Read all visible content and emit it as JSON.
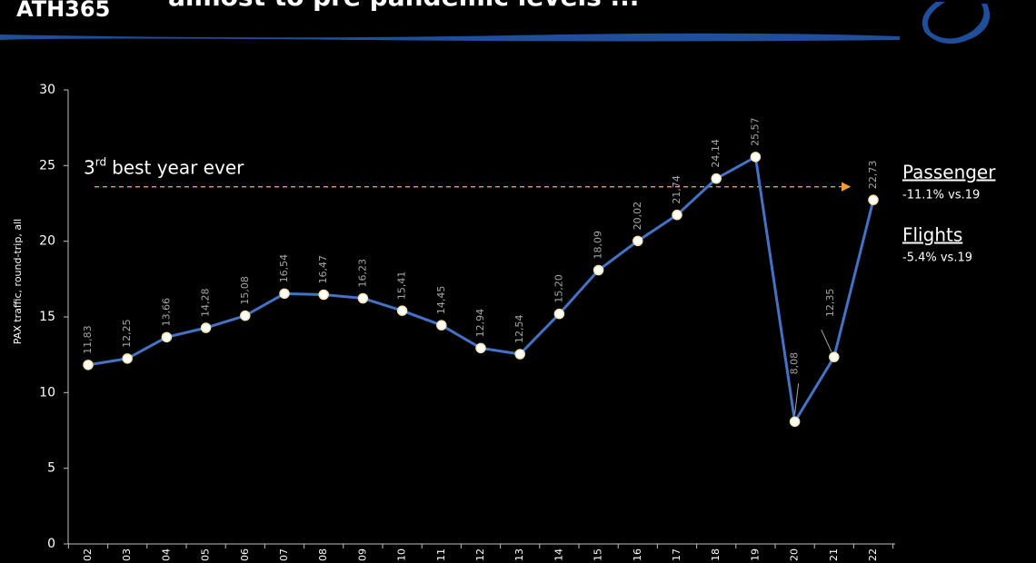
{
  "chart_data": {
    "type": "line",
    "logo": "ATH365",
    "title": "almost to pre pandemic levels ...",
    "y_label": "PAX traffic, round-trip, all",
    "categories": [
      "02",
      "03",
      "04",
      "05",
      "06",
      "07",
      "08",
      "09",
      "10",
      "11",
      "12",
      "13",
      "14",
      "15",
      "16",
      "17",
      "18",
      "19",
      "20",
      "21",
      "22"
    ],
    "series": [
      {
        "name": "PAX traffic",
        "color": "#4472c4",
        "values": [
          11.83,
          12.25,
          13.66,
          14.28,
          15.08,
          16.54,
          16.47,
          16.23,
          15.41,
          14.45,
          12.94,
          12.54,
          15.2,
          18.09,
          20.02,
          21.74,
          24.14,
          25.57,
          8.08,
          12.35,
          22.73
        ],
        "value_labels": [
          "11,83",
          "12,25",
          "13,66",
          "14,28",
          "15,08",
          "16,54",
          "16,47",
          "16,23",
          "15,41",
          "14,45",
          "12,94",
          "12,54",
          "15,20",
          "18,09",
          "20,02",
          "21,74",
          "24,14",
          "25,57",
          "8,08",
          "12,35",
          "22,73"
        ]
      }
    ],
    "ylim": [
      0,
      30
    ],
    "yticks": [
      0,
      5,
      10,
      15,
      20,
      25,
      30
    ],
    "reference": {
      "value": 23.6,
      "color": "#f0a030",
      "number": "3",
      "suffix": "rd",
      "text": "best year ever"
    },
    "notes": [
      {
        "title": "Passenger",
        "text": "-11.1% vs.19"
      },
      {
        "title": "Flights",
        "text": "-5.4% vs.19"
      }
    ]
  }
}
